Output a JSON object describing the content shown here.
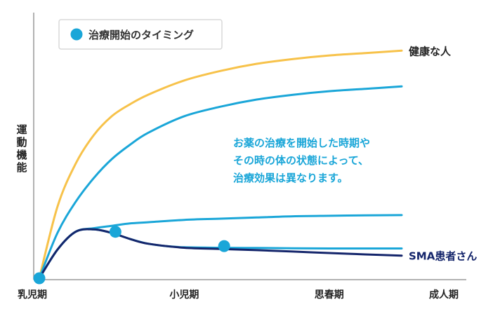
{
  "chart_data": {
    "type": "line",
    "title": "",
    "xlabel": "",
    "ylabel": "運動機能",
    "xlim": [
      0,
      100
    ],
    "ylim": [
      0,
      100
    ],
    "categories": [
      "乳児期",
      "小児期",
      "思春期",
      "成人期"
    ],
    "category_x": [
      0,
      40,
      80,
      100
    ],
    "legend": {
      "label": "治療開始のタイミング",
      "position": "top-left",
      "color": "#1aa6d8"
    },
    "annotation": {
      "lines": [
        "お薬の治療を開始した時期や",
        "その時の体の状態によって、",
        "治療効果は異なります。"
      ],
      "color": "#1aa6d8"
    },
    "series": [
      {
        "name": "健康な人",
        "color": "#f7c24a",
        "x": [
          0,
          5,
          10,
          15,
          20,
          25,
          30,
          40,
          50,
          60,
          70,
          80,
          90,
          100
        ],
        "y": [
          0,
          30,
          48,
          60,
          68,
          73,
          77,
          83,
          87,
          90,
          92,
          93.5,
          94.5,
          95.5
        ]
      },
      {
        "name": "",
        "color": "#1aa6d8",
        "x": [
          0,
          5,
          10,
          15,
          20,
          25,
          30,
          40,
          50,
          60,
          70,
          80,
          90,
          100
        ],
        "y": [
          0,
          19,
          32,
          42,
          50,
          56,
          61,
          68,
          72,
          75,
          77,
          78.5,
          79.5,
          80.5
        ]
      },
      {
        "name": "",
        "color": "#1aa6d8",
        "x": [
          0,
          5,
          10,
          15,
          20,
          25,
          30,
          40,
          50,
          60,
          70,
          80,
          90,
          100
        ],
        "y": [
          0,
          12,
          19.5,
          21,
          22,
          23,
          23.5,
          24.5,
          25,
          25.5,
          26,
          26.2,
          26.4,
          26.5
        ]
      },
      {
        "name": "",
        "color": "#1aa6d8",
        "x": [
          0,
          5,
          10,
          15,
          20,
          25,
          30,
          35,
          40,
          50,
          60,
          70,
          80,
          90,
          100
        ],
        "y": [
          0,
          12,
          19.5,
          20.5,
          19,
          16.5,
          14.5,
          13.5,
          13,
          12.8,
          12.7,
          12.6,
          12.5,
          12.5,
          12.5
        ]
      },
      {
        "name": "SMA患者さん",
        "color": "#14256b",
        "x": [
          0,
          5,
          10,
          15,
          20,
          25,
          30,
          40,
          50,
          60,
          70,
          80,
          90,
          100
        ],
        "y": [
          0,
          12,
          19.5,
          20.5,
          19,
          16.5,
          14.5,
          12.8,
          12.3,
          11.8,
          11.2,
          10.6,
          10,
          9.5
        ]
      }
    ],
    "markers": [
      {
        "x": 0,
        "y": 0
      },
      {
        "x": 21,
        "y": 19.5
      },
      {
        "x": 51,
        "y": 13.5
      }
    ]
  }
}
